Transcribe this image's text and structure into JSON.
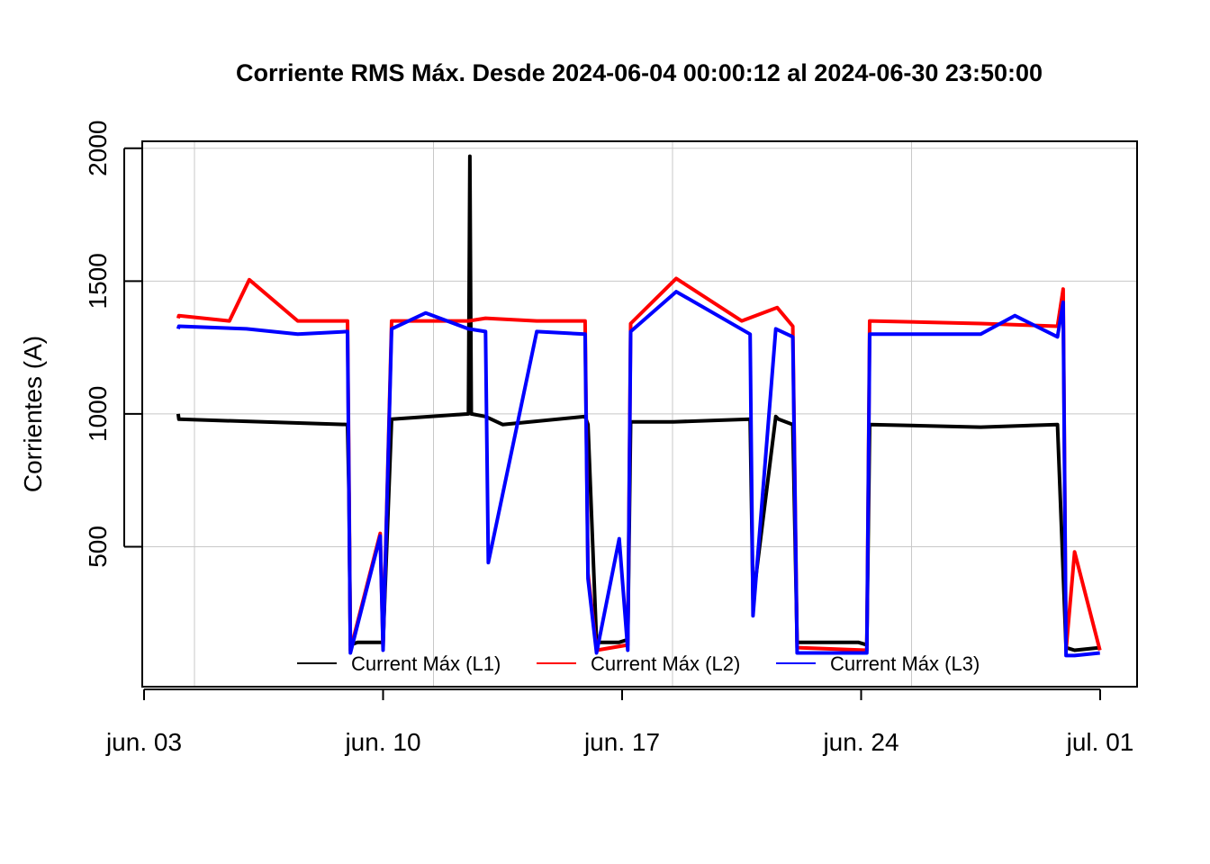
{
  "chart_data": {
    "type": "line",
    "title": "Corriente RMS Máx. Desde  2024-06-04 00:00:12  al  2024-06-30 23:50:00",
    "xlabel": "",
    "ylabel": "Corrientes (A)",
    "xlim": [
      "2024-06-03",
      "2024-07-01"
    ],
    "ylim": [
      0,
      2050
    ],
    "x_ticks": [
      {
        "date": "2024-06-03",
        "label": "jun. 03"
      },
      {
        "date": "2024-06-10",
        "label": "jun. 10"
      },
      {
        "date": "2024-06-17",
        "label": "jun. 17"
      },
      {
        "date": "2024-06-24",
        "label": "jun. 24"
      },
      {
        "date": "2024-07-01",
        "label": "jul. 01"
      }
    ],
    "y_ticks": [
      {
        "value": 500,
        "label": "500"
      },
      {
        "value": 1000,
        "label": "1000"
      },
      {
        "value": 1500,
        "label": "1500"
      },
      {
        "value": 2000,
        "label": "2000"
      }
    ],
    "grid": true,
    "legend_position": "bottom-center",
    "series": [
      {
        "name": "Current Máx (L1)",
        "color": "#000000",
        "x": [
          "2024-06-04 00:00",
          "2024-06-04 00:30",
          "2024-06-08 23:00",
          "2024-06-09 00:00",
          "2024-06-09 01:00",
          "2024-06-09 06:00",
          "2024-06-09 22:00",
          "2024-06-10 00:00",
          "2024-06-10 06:00",
          "2024-06-12 12:00",
          "2024-06-12 13:00",
          "2024-06-12 14:00",
          "2024-06-13 00:00",
          "2024-06-13 12:00",
          "2024-06-15 22:00",
          "2024-06-16 00:00",
          "2024-06-16 06:00",
          "2024-06-16 22:00",
          "2024-06-17 04:00",
          "2024-06-17 06:00",
          "2024-06-18 12:00",
          "2024-06-20 18:00",
          "2024-06-20 20:00",
          "2024-06-21 12:00",
          "2024-06-21 14:00",
          "2024-06-22 00:00",
          "2024-06-22 03:00",
          "2024-06-23 22:00",
          "2024-06-24 04:00",
          "2024-06-24 06:00",
          "2024-06-27 12:00",
          "2024-06-29 18:00",
          "2024-06-30 00:00",
          "2024-06-30 06:00",
          "2024-06-30 23:50"
        ],
        "y": [
          1000,
          980,
          960,
          700,
          130,
          140,
          140,
          140,
          980,
          1000,
          1970,
          1000,
          990,
          960,
          990,
          960,
          140,
          140,
          150,
          970,
          970,
          980,
          300,
          990,
          980,
          960,
          140,
          140,
          130,
          960,
          950,
          960,
          120,
          110,
          120
        ]
      },
      {
        "name": "Current Máx (L2)",
        "color": "#ff0000",
        "x": [
          "2024-06-04 00:00",
          "2024-06-04 00:30",
          "2024-06-05 12:00",
          "2024-06-06 02:00",
          "2024-06-07 12:00",
          "2024-06-08 23:00",
          "2024-06-09 00:00",
          "2024-06-09 01:00",
          "2024-06-09 22:00",
          "2024-06-10 00:00",
          "2024-06-10 06:00",
          "2024-06-12 12:00",
          "2024-06-13 00:00",
          "2024-06-14 12:00",
          "2024-06-15 22:00",
          "2024-06-16 00:00",
          "2024-06-16 06:00",
          "2024-06-17 04:00",
          "2024-06-17 06:00",
          "2024-06-18 14:00",
          "2024-06-20 12:00",
          "2024-06-21 13:00",
          "2024-06-22 00:00",
          "2024-06-22 03:00",
          "2024-06-24 04:00",
          "2024-06-24 06:00",
          "2024-06-27 12:00",
          "2024-06-29 18:00",
          "2024-06-29 22:00",
          "2024-06-30 00:00",
          "2024-06-30 06:00",
          "2024-06-30 23:50"
        ],
        "y": [
          1360,
          1370,
          1350,
          1505,
          1350,
          1350,
          780,
          110,
          550,
          120,
          1350,
          1350,
          1360,
          1350,
          1350,
          400,
          110,
          130,
          1340,
          1510,
          1350,
          1400,
          1330,
          120,
          110,
          1350,
          1340,
          1330,
          1470,
          110,
          480,
          110
        ]
      },
      {
        "name": "Current Máx (L3)",
        "color": "#0000ff",
        "x": [
          "2024-06-04 00:00",
          "2024-06-04 00:30",
          "2024-06-06 00:00",
          "2024-06-07 12:00",
          "2024-06-08 23:00",
          "2024-06-09 00:00",
          "2024-06-09 01:00",
          "2024-06-09 22:00",
          "2024-06-10 00:00",
          "2024-06-10 06:00",
          "2024-06-11 06:00",
          "2024-06-12 12:00",
          "2024-06-13 00:00",
          "2024-06-13 02:00",
          "2024-06-14 12:00",
          "2024-06-15 22:00",
          "2024-06-16 00:00",
          "2024-06-16 06:00",
          "2024-06-16 22:00",
          "2024-06-17 04:00",
          "2024-06-17 06:00",
          "2024-06-18 14:00",
          "2024-06-20 18:00",
          "2024-06-20 20:00",
          "2024-06-21 12:00",
          "2024-06-22 00:00",
          "2024-06-22 03:00",
          "2024-06-24 04:00",
          "2024-06-24 06:00",
          "2024-06-27 12:00",
          "2024-06-28 12:00",
          "2024-06-29 18:00",
          "2024-06-29 22:00",
          "2024-06-30 00:00",
          "2024-06-30 06:00",
          "2024-06-30 23:50"
        ],
        "y": [
          1320,
          1330,
          1320,
          1300,
          1310,
          720,
          100,
          540,
          110,
          1320,
          1380,
          1320,
          1310,
          440,
          1310,
          1300,
          380,
          100,
          530,
          110,
          1310,
          1460,
          1300,
          240,
          1320,
          1290,
          100,
          100,
          1300,
          1300,
          1370,
          1290,
          1420,
          90,
          90,
          100
        ]
      }
    ]
  }
}
